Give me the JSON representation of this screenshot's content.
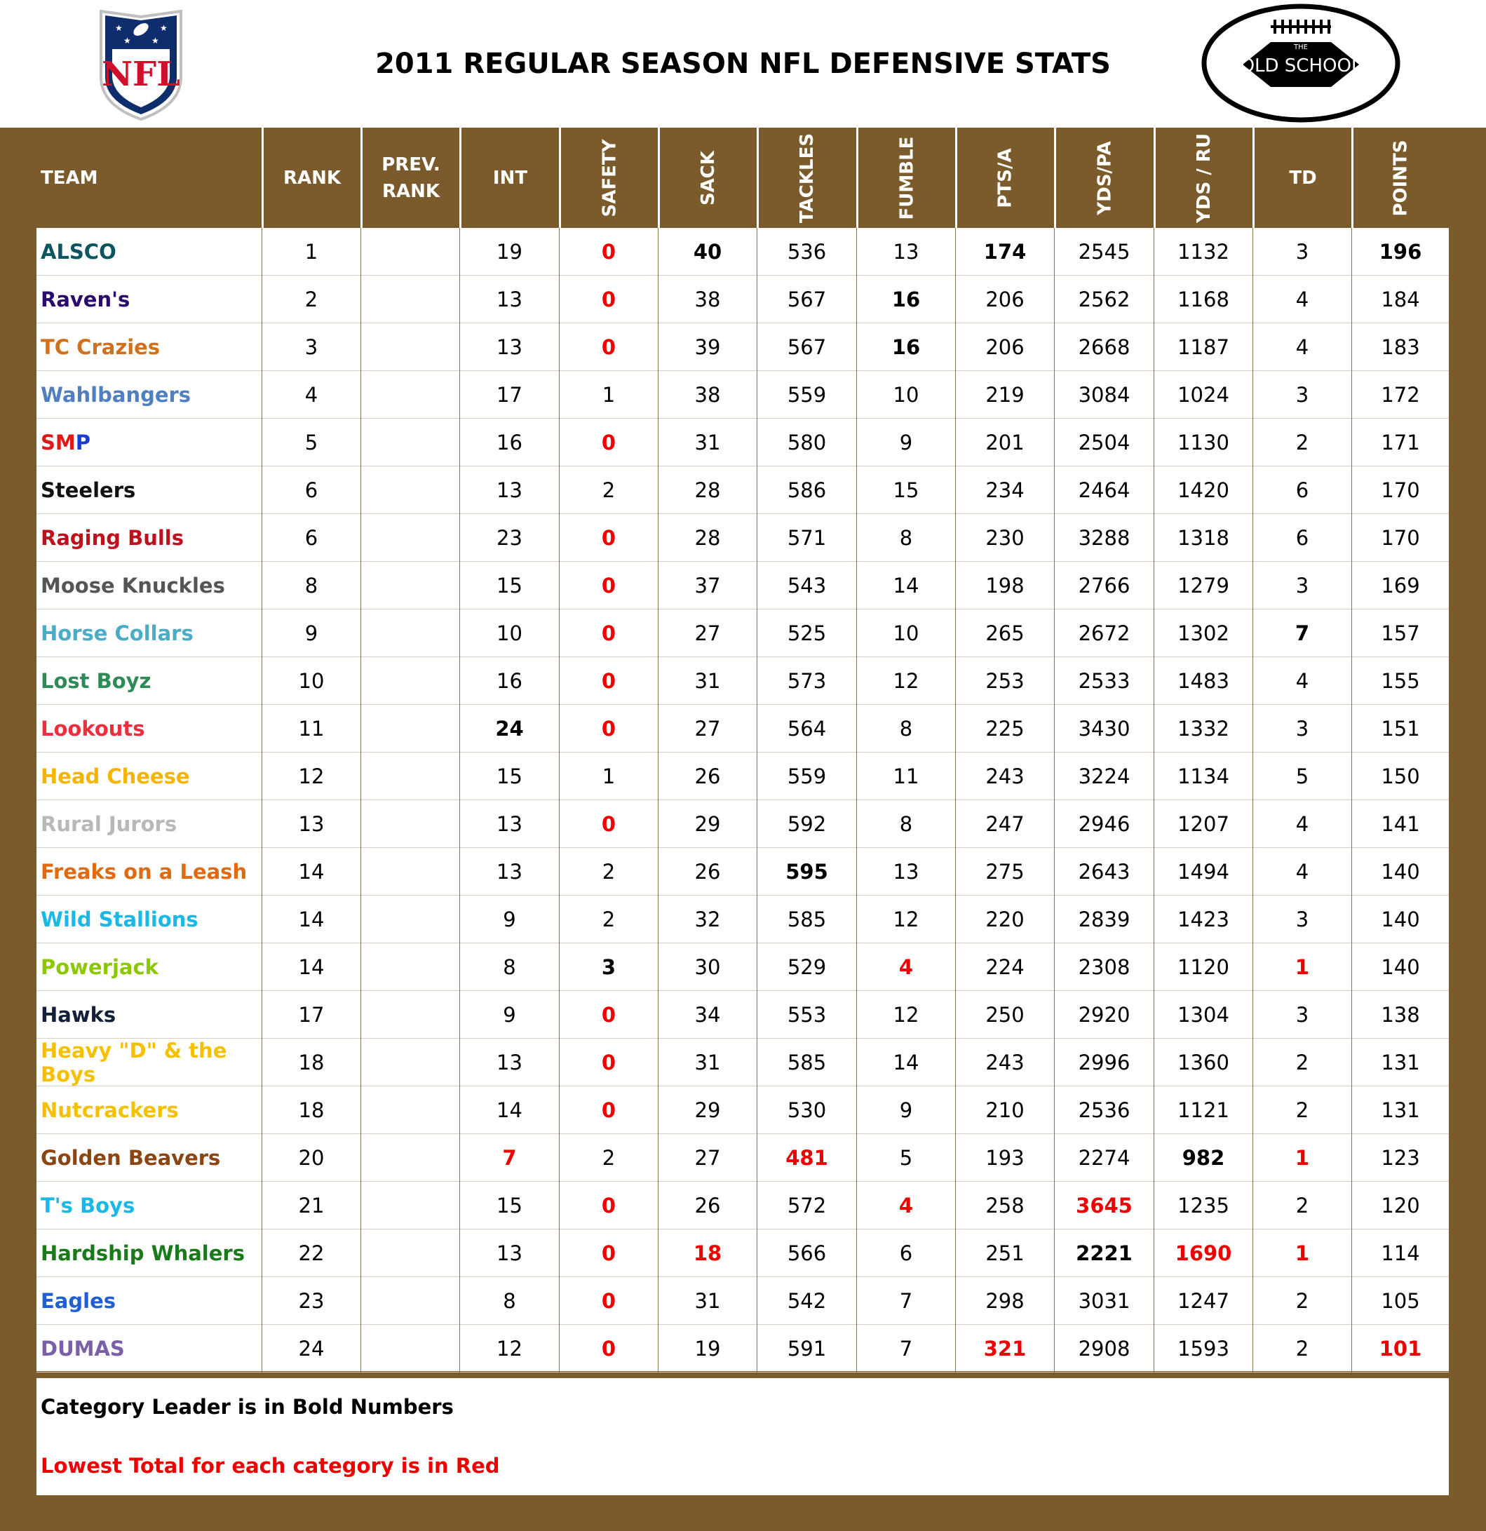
{
  "title": "2011 REGULAR SEASON NFL DEFENSIVE STATS",
  "logos": {
    "nfl_text": "NFL",
    "oldschool_top": "THE",
    "oldschool_text": "OLD SCHOOL"
  },
  "columns": [
    "TEAM",
    "RANK",
    "PREV. RANK",
    "INT",
    "SAFETY",
    "SACK",
    "TACKLES",
    "FUMBLE",
    "PTS/A",
    "YDS/PA",
    "YDS / RU",
    "TD",
    "POINTS"
  ],
  "rows": [
    {
      "team": "ALSCO",
      "color": "#0a5560",
      "rank": "1",
      "prev": "",
      "int": "19",
      "safety": "0",
      "sack": "40",
      "tackles": "536",
      "fumble": "13",
      "ptsa": "174",
      "ydspa": "2545",
      "ydsru": "1132",
      "td": "3",
      "points": "196"
    },
    {
      "team": "Raven's",
      "color": "#2a0a6a",
      "rank": "2",
      "prev": "",
      "int": "13",
      "safety": "0",
      "sack": "38",
      "tackles": "567",
      "fumble": "16",
      "ptsa": "206",
      "ydspa": "2562",
      "ydsru": "1168",
      "td": "4",
      "points": "184"
    },
    {
      "team": "TC Crazies",
      "color": "#d16f1a",
      "rank": "3",
      "prev": "",
      "int": "13",
      "safety": "0",
      "sack": "39",
      "tackles": "567",
      "fumble": "16",
      "ptsa": "206",
      "ydspa": "2668",
      "ydsru": "1187",
      "td": "4",
      "points": "183"
    },
    {
      "team": "Wahlbangers",
      "color": "#4f7ec1",
      "rank": "4",
      "prev": "",
      "int": "17",
      "safety": "1",
      "sack": "38",
      "tackles": "559",
      "fumble": "10",
      "ptsa": "219",
      "ydspa": "3084",
      "ydsru": "1024",
      "td": "3",
      "points": "172"
    },
    {
      "team": "SMP",
      "color": "#e01818",
      "rank": "5",
      "prev": "",
      "int": "16",
      "safety": "0",
      "sack": "31",
      "tackles": "580",
      "fumble": "9",
      "ptsa": "201",
      "ydspa": "2504",
      "ydsru": "1130",
      "td": "2",
      "points": "171"
    },
    {
      "team": "Steelers",
      "color": "#111111",
      "rank": "6",
      "prev": "",
      "int": "13",
      "safety": "2",
      "sack": "28",
      "tackles": "586",
      "fumble": "15",
      "ptsa": "234",
      "ydspa": "2464",
      "ydsru": "1420",
      "td": "6",
      "points": "170"
    },
    {
      "team": "Raging Bulls",
      "color": "#c0101e",
      "rank": "6",
      "prev": "",
      "int": "23",
      "safety": "0",
      "sack": "28",
      "tackles": "571",
      "fumble": "8",
      "ptsa": "230",
      "ydspa": "3288",
      "ydsru": "1318",
      "td": "6",
      "points": "170"
    },
    {
      "team": "Moose Knuckles",
      "color": "#555555",
      "rank": "8",
      "prev": "",
      "int": "15",
      "safety": "0",
      "sack": "37",
      "tackles": "543",
      "fumble": "14",
      "ptsa": "198",
      "ydspa": "2766",
      "ydsru": "1279",
      "td": "3",
      "points": "169"
    },
    {
      "team": "Horse Collars",
      "color": "#4aacc6",
      "rank": "9",
      "prev": "",
      "int": "10",
      "safety": "0",
      "sack": "27",
      "tackles": "525",
      "fumble": "10",
      "ptsa": "265",
      "ydspa": "2672",
      "ydsru": "1302",
      "td": "7",
      "points": "157"
    },
    {
      "team": "Lost Boyz",
      "color": "#2e8b57",
      "rank": "10",
      "prev": "",
      "int": "16",
      "safety": "0",
      "sack": "31",
      "tackles": "573",
      "fumble": "12",
      "ptsa": "253",
      "ydspa": "2533",
      "ydsru": "1483",
      "td": "4",
      "points": "155"
    },
    {
      "team": "Lookouts",
      "color": "#ee2d3d",
      "rank": "11",
      "prev": "",
      "int": "24",
      "safety": "0",
      "sack": "27",
      "tackles": "564",
      "fumble": "8",
      "ptsa": "225",
      "ydspa": "3430",
      "ydsru": "1332",
      "td": "3",
      "points": "151"
    },
    {
      "team": "Head Cheese",
      "color": "#f5b400",
      "rank": "12",
      "prev": "",
      "int": "15",
      "safety": "1",
      "sack": "26",
      "tackles": "559",
      "fumble": "11",
      "ptsa": "243",
      "ydspa": "3224",
      "ydsru": "1134",
      "td": "5",
      "points": "150"
    },
    {
      "team": "Rural Jurors",
      "color": "#b8b8b8",
      "rank": "13",
      "prev": "",
      "int": "13",
      "safety": "0",
      "sack": "29",
      "tackles": "592",
      "fumble": "8",
      "ptsa": "247",
      "ydspa": "2946",
      "ydsru": "1207",
      "td": "4",
      "points": "141"
    },
    {
      "team": "Freaks on a Leash",
      "color": "#e06a10",
      "rank": "14",
      "prev": "",
      "int": "13",
      "safety": "2",
      "sack": "26",
      "tackles": "595",
      "fumble": "13",
      "ptsa": "275",
      "ydspa": "2643",
      "ydsru": "1494",
      "td": "4",
      "points": "140"
    },
    {
      "team": "Wild Stallions",
      "color": "#19b8e6",
      "rank": "14",
      "prev": "",
      "int": "9",
      "safety": "2",
      "sack": "32",
      "tackles": "585",
      "fumble": "12",
      "ptsa": "220",
      "ydspa": "2839",
      "ydsru": "1423",
      "td": "3",
      "points": "140"
    },
    {
      "team": "Powerjack",
      "color": "#8cc800",
      "rank": "14",
      "prev": "",
      "int": "8",
      "safety": "3",
      "sack": "30",
      "tackles": "529",
      "fumble": "4",
      "ptsa": "224",
      "ydspa": "2308",
      "ydsru": "1120",
      "td": "1",
      "points": "140"
    },
    {
      "team": "Hawks",
      "color": "#14203a",
      "rank": "17",
      "prev": "",
      "int": "9",
      "safety": "0",
      "sack": "34",
      "tackles": "553",
      "fumble": "12",
      "ptsa": "250",
      "ydspa": "2920",
      "ydsru": "1304",
      "td": "3",
      "points": "138"
    },
    {
      "team": "Heavy \"D\" & the Boys",
      "color": "#f5c000",
      "rank": "18",
      "prev": "",
      "int": "13",
      "safety": "0",
      "sack": "31",
      "tackles": "585",
      "fumble": "14",
      "ptsa": "243",
      "ydspa": "2996",
      "ydsru": "1360",
      "td": "2",
      "points": "131"
    },
    {
      "team": "Nutcrackers",
      "color": "#f5c000",
      "rank": "18",
      "prev": "",
      "int": "14",
      "safety": "0",
      "sack": "29",
      "tackles": "530",
      "fumble": "9",
      "ptsa": "210",
      "ydspa": "2536",
      "ydsru": "1121",
      "td": "2",
      "points": "131"
    },
    {
      "team": "Golden Beavers",
      "color": "#8b4513",
      "rank": "20",
      "prev": "",
      "int": "7",
      "safety": "2",
      "sack": "27",
      "tackles": "481",
      "fumble": "5",
      "ptsa": "193",
      "ydspa": "2274",
      "ydsru": "982",
      "td": "1",
      "points": "123"
    },
    {
      "team": "T's Boys",
      "color": "#19b8e6",
      "rank": "21",
      "prev": "",
      "int": "15",
      "safety": "0",
      "sack": "26",
      "tackles": "572",
      "fumble": "4",
      "ptsa": "258",
      "ydspa": "3645",
      "ydsru": "1235",
      "td": "2",
      "points": "120"
    },
    {
      "team": "Hardship Whalers",
      "color": "#1a7a1a",
      "rank": "22",
      "prev": "",
      "int": "13",
      "safety": "0",
      "sack": "18",
      "tackles": "566",
      "fumble": "6",
      "ptsa": "251",
      "ydspa": "2221",
      "ydsru": "1690",
      "td": "1",
      "points": "114"
    },
    {
      "team": "Eagles",
      "color": "#1f5fd6",
      "rank": "23",
      "prev": "",
      "int": "8",
      "safety": "0",
      "sack": "31",
      "tackles": "542",
      "fumble": "7",
      "ptsa": "298",
      "ydspa": "3031",
      "ydsru": "1247",
      "td": "2",
      "points": "105"
    },
    {
      "team": "DUMAS",
      "color": "#7a60a8",
      "rank": "24",
      "prev": "",
      "int": "12",
      "safety": "0",
      "sack": "19",
      "tackles": "591",
      "fumble": "7",
      "ptsa": "321",
      "ydspa": "2908",
      "ydsru": "1593",
      "td": "2",
      "points": "101"
    }
  ],
  "bold_cells": [
    [
      0,
      "sack"
    ],
    [
      0,
      "ptsa"
    ],
    [
      0,
      "points"
    ],
    [
      1,
      "fumble"
    ],
    [
      2,
      "fumble"
    ],
    [
      8,
      "td"
    ],
    [
      10,
      "int"
    ],
    [
      13,
      "tackles"
    ],
    [
      15,
      "safety"
    ],
    [
      19,
      "ydsru"
    ],
    [
      21,
      "ydspa"
    ]
  ],
  "red_cells": [
    [
      15,
      "fumble"
    ],
    [
      15,
      "td"
    ],
    [
      19,
      "int"
    ],
    [
      19,
      "tackles"
    ],
    [
      19,
      "td"
    ],
    [
      20,
      "fumble"
    ],
    [
      20,
      "ydspa"
    ],
    [
      21,
      "sack"
    ],
    [
      21,
      "ydsru"
    ],
    [
      21,
      "td"
    ],
    [
      23,
      "ptsa"
    ],
    [
      23,
      "points"
    ]
  ],
  "footer": {
    "note1": "Category Leader is in Bold Numbers",
    "note2": "Lowest Total for each category is in Red"
  }
}
